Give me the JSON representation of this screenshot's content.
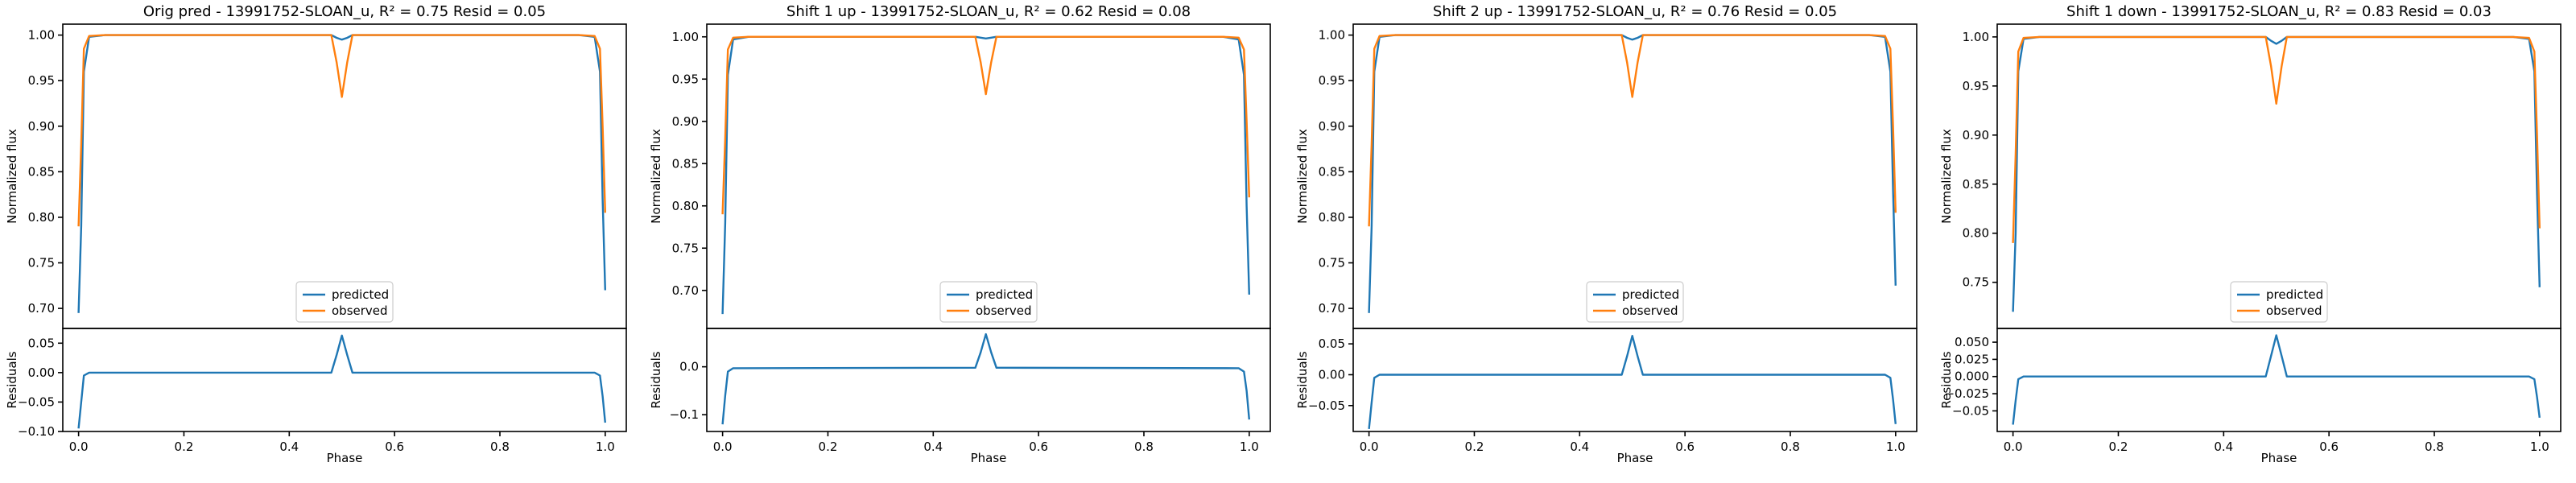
{
  "chart_data": [
    {
      "type": "line",
      "title": "Orig pred - 13991752-SLOAN_u, R² = 0.75 Resid = 0.05",
      "xlabel": "Phase",
      "ylabel_top": "Normalized flux",
      "ylabel_bottom": "Residuals",
      "xlim": [
        -0.03,
        1.04
      ],
      "xticks": [
        "0.0",
        "0.2",
        "0.4",
        "0.6",
        "0.8",
        "1.0"
      ],
      "ylim_top": [
        0.678,
        1.012
      ],
      "yticks_top": [
        "0.70",
        "0.75",
        "0.80",
        "0.85",
        "0.90",
        "0.95",
        "1.00"
      ],
      "ylim_bottom": [
        -0.1,
        0.075
      ],
      "yticks_bottom": [
        "−0.10",
        "−0.05",
        "0.00",
        "0.05"
      ],
      "legend": {
        "position": "lower center",
        "entries": [
          "predicted",
          "observed"
        ]
      },
      "series": [
        {
          "name": "predicted",
          "color": "#1f77b4",
          "x": [
            0,
            0.005,
            0.01,
            0.02,
            0.05,
            0.48,
            0.49,
            0.5,
            0.51,
            0.52,
            0.95,
            0.98,
            0.99,
            0.995,
            1.0
          ],
          "values": [
            0.695,
            0.79,
            0.96,
            0.998,
            1.0,
            1.0,
            0.997,
            0.995,
            0.997,
            1.0,
            1.0,
            0.998,
            0.96,
            0.82,
            0.72
          ]
        },
        {
          "name": "observed",
          "color": "#ff7f0e",
          "x": [
            0,
            0.005,
            0.01,
            0.02,
            0.05,
            0.48,
            0.49,
            0.5,
            0.51,
            0.52,
            0.95,
            0.98,
            0.99,
            0.995,
            1.0
          ],
          "values": [
            0.79,
            0.88,
            0.985,
            0.999,
            1.0,
            1.0,
            0.97,
            0.932,
            0.97,
            1.0,
            1.0,
            0.999,
            0.985,
            0.9,
            0.805
          ]
        }
      ],
      "residuals": {
        "color": "#1f77b4",
        "x": [
          0,
          0.005,
          0.01,
          0.02,
          0.48,
          0.49,
          0.5,
          0.51,
          0.52,
          0.98,
          0.99,
          0.995,
          1.0
        ],
        "values": [
          -0.095,
          -0.05,
          -0.005,
          0.0,
          0.0,
          0.03,
          0.063,
          0.03,
          0.0,
          0.0,
          -0.005,
          -0.04,
          -0.085
        ]
      }
    },
    {
      "type": "line",
      "title": "Shift 1 up - 13991752-SLOAN_u, R² = 0.62 Resid = 0.08",
      "xlabel": "Phase",
      "ylabel_top": "Normalized flux",
      "ylabel_bottom": "Residuals",
      "xlim": [
        -0.03,
        1.04
      ],
      "xticks": [
        "0.0",
        "0.2",
        "0.4",
        "0.6",
        "0.8",
        "1.0"
      ],
      "ylim_top": [
        0.655,
        1.015
      ],
      "yticks_top": [
        "0.70",
        "0.75",
        "0.80",
        "0.85",
        "0.90",
        "0.95",
        "1.00"
      ],
      "ylim_bottom": [
        -0.135,
        0.08
      ],
      "yticks_bottom": [
        "−0.1",
        "0.0"
      ],
      "legend": {
        "position": "lower center",
        "entries": [
          "predicted",
          "observed"
        ]
      },
      "series": [
        {
          "name": "predicted",
          "color": "#1f77b4",
          "x": [
            0,
            0.005,
            0.01,
            0.02,
            0.05,
            0.48,
            0.49,
            0.5,
            0.51,
            0.52,
            0.95,
            0.98,
            0.99,
            0.995,
            1.0
          ],
          "values": [
            0.672,
            0.78,
            0.955,
            0.997,
            1.0,
            1.0,
            0.999,
            0.998,
            0.999,
            1.0,
            1.0,
            0.997,
            0.955,
            0.8,
            0.695
          ]
        },
        {
          "name": "observed",
          "color": "#ff7f0e",
          "x": [
            0,
            0.005,
            0.01,
            0.02,
            0.05,
            0.48,
            0.49,
            0.5,
            0.51,
            0.52,
            0.95,
            0.98,
            0.99,
            0.995,
            1.0
          ],
          "values": [
            0.79,
            0.88,
            0.985,
            0.999,
            1.0,
            1.0,
            0.97,
            0.932,
            0.97,
            1.0,
            1.0,
            0.999,
            0.985,
            0.9,
            0.81
          ]
        }
      ],
      "residuals": {
        "color": "#1f77b4",
        "x": [
          0,
          0.005,
          0.01,
          0.02,
          0.48,
          0.49,
          0.5,
          0.51,
          0.52,
          0.98,
          0.99,
          0.995,
          1.0
        ],
        "values": [
          -0.12,
          -0.06,
          -0.01,
          -0.003,
          -0.002,
          0.03,
          0.068,
          0.03,
          -0.002,
          -0.003,
          -0.01,
          -0.05,
          -0.11
        ]
      }
    },
    {
      "type": "line",
      "title": "Shift 2 up - 13991752-SLOAN_u, R² = 0.76 Resid = 0.05",
      "xlabel": "Phase",
      "ylabel_top": "Normalized flux",
      "ylabel_bottom": "Residuals",
      "xlim": [
        -0.03,
        1.04
      ],
      "xticks": [
        "0.0",
        "0.2",
        "0.4",
        "0.6",
        "0.8",
        "1.0"
      ],
      "ylim_top": [
        0.678,
        1.012
      ],
      "yticks_top": [
        "0.70",
        "0.75",
        "0.80",
        "0.85",
        "0.90",
        "0.95",
        "1.00"
      ],
      "ylim_bottom": [
        -0.092,
        0.075
      ],
      "yticks_bottom": [
        "−0.05",
        "0.00",
        "0.05"
      ],
      "legend": {
        "position": "lower center",
        "entries": [
          "predicted",
          "observed"
        ]
      },
      "series": [
        {
          "name": "predicted",
          "color": "#1f77b4",
          "x": [
            0,
            0.005,
            0.01,
            0.02,
            0.05,
            0.48,
            0.49,
            0.5,
            0.51,
            0.52,
            0.95,
            0.98,
            0.99,
            0.995,
            1.0
          ],
          "values": [
            0.695,
            0.79,
            0.96,
            0.998,
            1.0,
            1.0,
            0.997,
            0.995,
            0.997,
            1.0,
            1.0,
            0.998,
            0.96,
            0.83,
            0.725
          ]
        },
        {
          "name": "observed",
          "color": "#ff7f0e",
          "x": [
            0,
            0.005,
            0.01,
            0.02,
            0.05,
            0.48,
            0.49,
            0.5,
            0.51,
            0.52,
            0.95,
            0.98,
            0.99,
            0.995,
            1.0
          ],
          "values": [
            0.79,
            0.88,
            0.985,
            0.999,
            1.0,
            1.0,
            0.97,
            0.932,
            0.97,
            1.0,
            1.0,
            0.999,
            0.985,
            0.9,
            0.805
          ]
        }
      ],
      "residuals": {
        "color": "#1f77b4",
        "x": [
          0,
          0.005,
          0.01,
          0.02,
          0.48,
          0.49,
          0.5,
          0.51,
          0.52,
          0.98,
          0.99,
          0.995,
          1.0
        ],
        "values": [
          -0.088,
          -0.045,
          -0.005,
          0.0,
          0.0,
          0.03,
          0.063,
          0.03,
          0.0,
          0.0,
          -0.005,
          -0.04,
          -0.08
        ]
      }
    },
    {
      "type": "line",
      "title": "Shift 1 down - 13991752-SLOAN_u, R² = 0.83 Resid = 0.03",
      "xlabel": "Phase",
      "ylabel_top": "Normalized flux",
      "ylabel_bottom": "Residuals",
      "xlim": [
        -0.03,
        1.04
      ],
      "xticks": [
        "0.0",
        "0.2",
        "0.4",
        "0.6",
        "0.8",
        "1.0"
      ],
      "ylim_top": [
        0.703,
        1.013
      ],
      "yticks_top": [
        "0.75",
        "0.80",
        "0.85",
        "0.90",
        "0.95",
        "1.00"
      ],
      "ylim_bottom": [
        -0.08,
        0.07
      ],
      "yticks_bottom": [
        "−0.05",
        "−0.025",
        "0.000",
        "0.025",
        "0.050"
      ],
      "legend": {
        "position": "lower center",
        "entries": [
          "predicted",
          "observed"
        ]
      },
      "series": [
        {
          "name": "predicted",
          "color": "#1f77b4",
          "x": [
            0,
            0.005,
            0.01,
            0.02,
            0.05,
            0.48,
            0.49,
            0.5,
            0.51,
            0.52,
            0.95,
            0.98,
            0.99,
            0.995,
            1.0
          ],
          "values": [
            0.72,
            0.8,
            0.965,
            0.998,
            1.0,
            1.0,
            0.996,
            0.993,
            0.996,
            1.0,
            1.0,
            0.998,
            0.965,
            0.84,
            0.745
          ]
        },
        {
          "name": "observed",
          "color": "#ff7f0e",
          "x": [
            0,
            0.005,
            0.01,
            0.02,
            0.05,
            0.48,
            0.49,
            0.5,
            0.51,
            0.52,
            0.95,
            0.98,
            0.99,
            0.995,
            1.0
          ],
          "values": [
            0.79,
            0.88,
            0.985,
            0.999,
            1.0,
            1.0,
            0.97,
            0.932,
            0.97,
            1.0,
            1.0,
            0.999,
            0.985,
            0.9,
            0.805
          ]
        }
      ],
      "residuals": {
        "color": "#1f77b4",
        "x": [
          0,
          0.005,
          0.01,
          0.02,
          0.48,
          0.49,
          0.5,
          0.51,
          0.52,
          0.98,
          0.99,
          0.995,
          1.0
        ],
        "values": [
          -0.07,
          -0.035,
          -0.004,
          0.0,
          0.0,
          0.03,
          0.06,
          0.03,
          0.0,
          0.0,
          -0.004,
          -0.03,
          -0.06
        ]
      }
    }
  ]
}
